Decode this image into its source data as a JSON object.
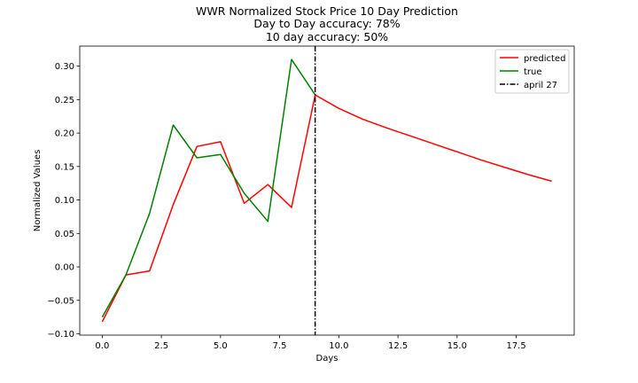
{
  "chart_data": {
    "type": "line",
    "title_lines": [
      "WWR Normalized Stock Price 10 Day Prediction",
      "Day to Day accuracy: 78%",
      "10 day accuracy: 50%"
    ],
    "xlabel": "Days",
    "ylabel": "Normalized Values",
    "xlim": [
      -0.95,
      19.95
    ],
    "ylim": [
      -0.102,
      0.33
    ],
    "x_ticks": [
      0.0,
      2.5,
      5.0,
      7.5,
      10.0,
      12.5,
      15.0,
      17.5
    ],
    "x_tick_labels": [
      "0.0",
      "2.5",
      "5.0",
      "7.5",
      "10.0",
      "12.5",
      "15.0",
      "17.5"
    ],
    "y_ticks": [
      -0.1,
      -0.05,
      0.0,
      0.05,
      0.1,
      0.15,
      0.2,
      0.25,
      0.3
    ],
    "y_tick_labels": [
      "−0.10",
      "−0.05",
      "0.00",
      "0.05",
      "0.10",
      "0.15",
      "0.20",
      "0.25",
      "0.30"
    ],
    "grid": false,
    "legend_position": "upper right",
    "series": [
      {
        "name": "predicted",
        "color": "#ff0000",
        "x": [
          0,
          1,
          2,
          3,
          4,
          5,
          6,
          7,
          8,
          9,
          10,
          11,
          12,
          13,
          14,
          15,
          16,
          17,
          18,
          19
        ],
        "values": [
          -0.082,
          -0.012,
          -0.006,
          0.093,
          0.18,
          0.187,
          0.095,
          0.123,
          0.089,
          0.257,
          0.237,
          0.221,
          0.208,
          0.196,
          0.184,
          0.172,
          0.16,
          0.149,
          0.138,
          0.128
        ]
      },
      {
        "name": "true",
        "color": "#008000",
        "x": [
          0,
          1,
          2,
          3,
          4,
          5,
          6,
          7,
          8,
          9
        ],
        "values": [
          -0.075,
          -0.012,
          0.08,
          0.212,
          0.163,
          0.168,
          0.11,
          0.068,
          0.31,
          0.257
        ]
      }
    ],
    "vline": {
      "name": "april 27",
      "x": 9,
      "color": "#000000",
      "style": "dash-dot"
    }
  }
}
